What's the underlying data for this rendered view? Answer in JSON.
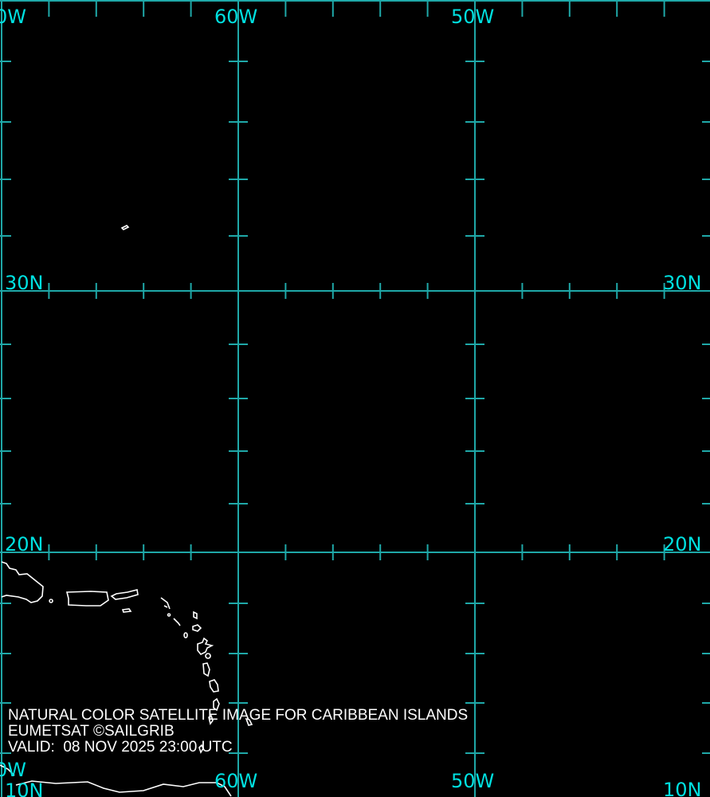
{
  "map": {
    "grid_color": "#1fa8a8",
    "label_color": "#00e0e0",
    "coast_color": "#ffffff",
    "labels": {
      "top_left": "0W",
      "top_60w": "60W",
      "top_50w": "50W",
      "left_30n": "30N",
      "right_30n": "30N",
      "left_20n": "20N",
      "right_20n": "20N",
      "bottom_left_w": "0W",
      "bottom_left_n": "10N",
      "bottom_60w": "60W",
      "bottom_50w": "50W",
      "bottom_right_n": "10N"
    }
  },
  "caption": {
    "line1": "NATURAL COLOR SATELLITE IMAGE FOR CARIBBEAN ISLANDS",
    "line2": "EUMETSAT ©SAILGRIB",
    "line3": "VALID:  08 NOV 2025 23:00 UTC"
  }
}
